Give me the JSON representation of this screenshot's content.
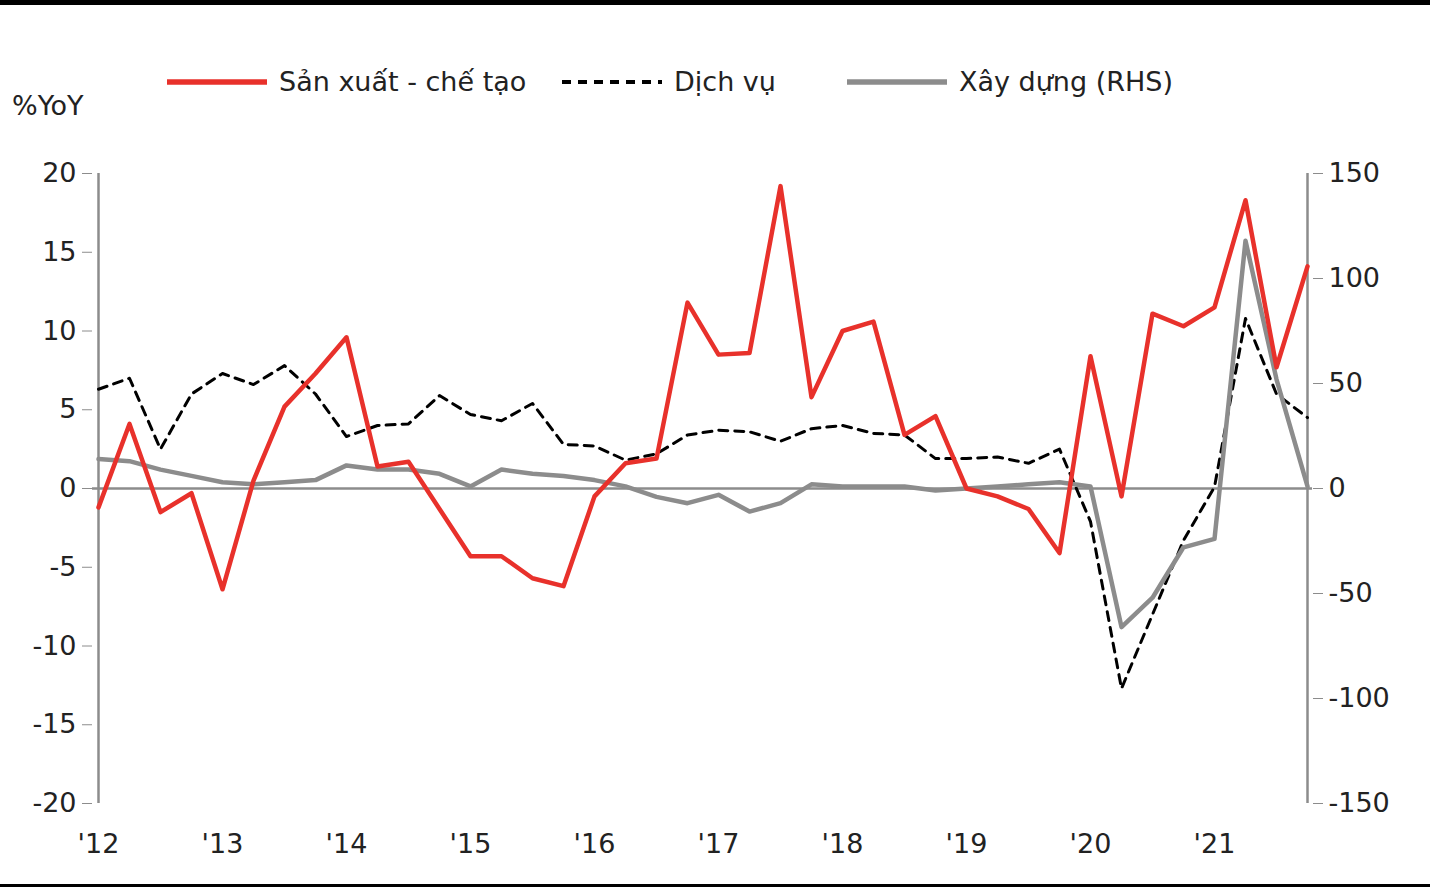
{
  "chart_data": {
    "type": "line",
    "ylabel": "%YoY",
    "legend": "top",
    "grid": false,
    "categories": [
      "'12",
      null,
      null,
      null,
      "'13",
      null,
      null,
      null,
      "'14",
      null,
      null,
      null,
      "'15",
      null,
      null,
      null,
      "'16",
      null,
      null,
      null,
      "'17",
      null,
      null,
      null,
      "'18",
      null,
      null,
      null,
      "'19",
      null,
      null,
      null,
      "'20",
      null,
      null,
      null,
      "'21",
      null,
      null,
      null
    ],
    "ylim": [
      -20,
      20
    ],
    "yticks": [
      -20,
      -15,
      -10,
      -5,
      0,
      5,
      10,
      15,
      20
    ],
    "y2lim": [
      -150,
      150
    ],
    "y2ticks": [
      -150,
      -100,
      -50,
      0,
      50,
      100,
      150
    ],
    "series": [
      {
        "name": "Sản xuất - chế tạo",
        "color": "#e8312b",
        "line_style": "solid",
        "values": [
          -1.2,
          4.1,
          -1.5,
          -0.3,
          -6.4,
          0.5,
          5.2,
          7.3,
          9.6,
          1.4,
          1.7,
          -1.3,
          -4.3,
          -4.3,
          -5.7,
          -6.2,
          -0.5,
          1.6,
          1.9,
          11.8,
          8.5,
          8.6,
          19.2,
          5.8,
          10.0,
          10.6,
          3.4,
          4.6,
          0.0,
          -0.5,
          -1.3,
          -4.1,
          8.4,
          -0.5,
          11.1,
          10.3,
          11.5,
          18.3,
          7.7,
          14.1
        ]
      },
      {
        "name": "Dịch vụ",
        "color": "#000000",
        "line_style": "dashed",
        "values": [
          6.3,
          7.0,
          2.5,
          6.0,
          7.3,
          6.6,
          7.8,
          6.0,
          3.3,
          4.0,
          4.1,
          5.9,
          4.7,
          4.3,
          5.4,
          2.8,
          2.7,
          1.8,
          2.2,
          3.4,
          3.7,
          3.6,
          3.0,
          3.8,
          4.0,
          3.5,
          3.4,
          1.9,
          1.9,
          2.0,
          1.6,
          2.5,
          -2.1,
          -12.7,
          -8.0,
          -3.3,
          0.1,
          10.8,
          6.0,
          4.5
        ]
      },
      {
        "name": "Xây dựng (RHS)",
        "color": "#8c8c8c",
        "line_style": "solid",
        "axis": "y2",
        "values": [
          14,
          13,
          9,
          6,
          3,
          2,
          3,
          4,
          11,
          9,
          9,
          7,
          1,
          9,
          7,
          6,
          4,
          1,
          -4,
          -7,
          -3,
          -11,
          -7,
          2,
          1,
          1,
          1,
          -1,
          0,
          1,
          2,
          3,
          1,
          -66,
          -52,
          -28,
          -24,
          118,
          52,
          1
        ]
      }
    ]
  }
}
